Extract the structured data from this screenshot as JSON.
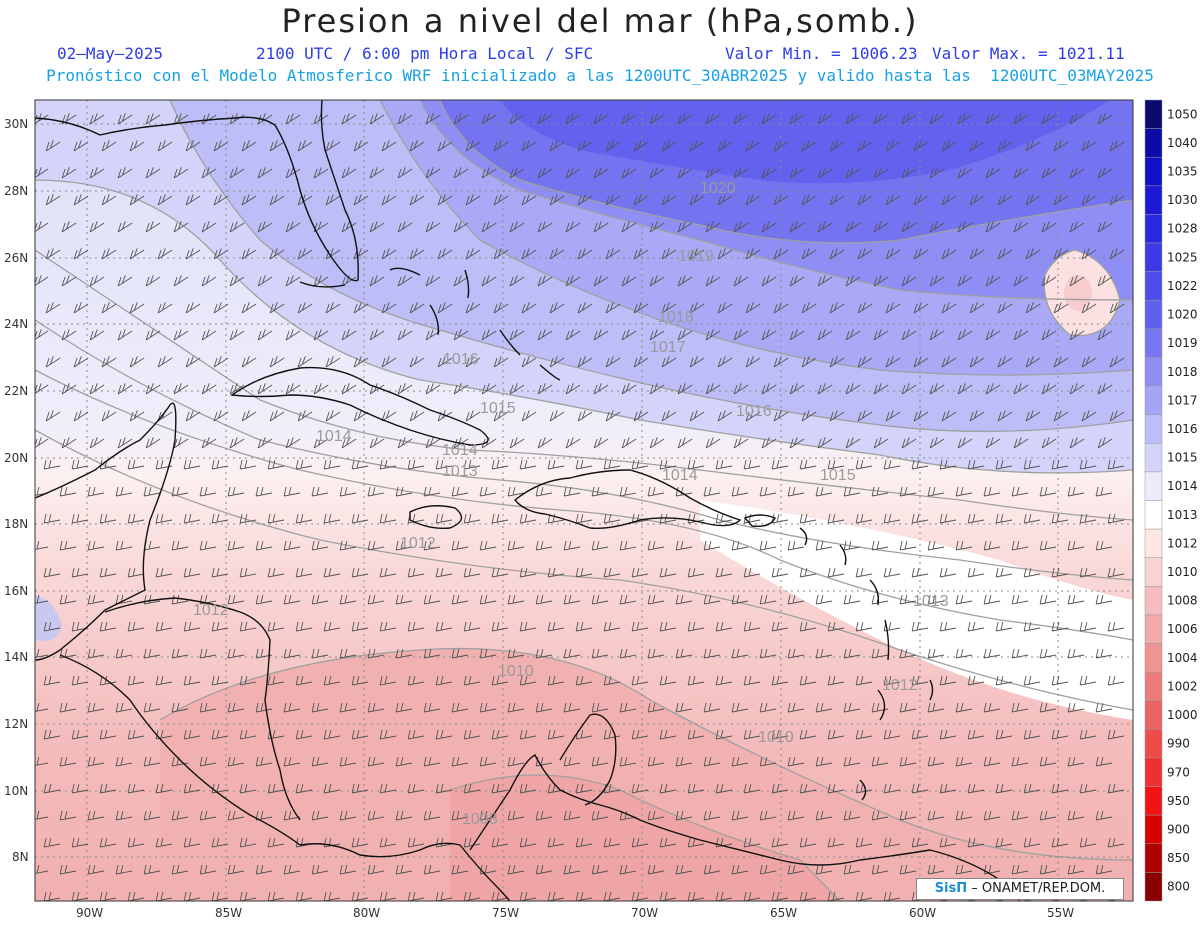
{
  "header": {
    "title": "Presion a nivel del mar (hPa,somb.)",
    "date": "02–May–2025",
    "time": "2100 UTC / 6:00 pm Hora Local / SFC",
    "valmin": "Valor Min. = 1006.23",
    "valmax": "Valor Max. = 1021.11",
    "forecast": "Pronóstico con el Modelo Atmosferico WRF inicializado a las 1200UTC_30ABR2025 y valido hasta las  1200UTC_03MAY2025"
  },
  "axes": {
    "lon_labels": [
      "90W",
      "85W",
      "80W",
      "75W",
      "70W",
      "65W",
      "60W",
      "55W"
    ],
    "lat_labels": [
      "30N",
      "28N",
      "26N",
      "24N",
      "22N",
      "20N",
      "18N",
      "16N",
      "14N",
      "12N",
      "10N",
      "8N"
    ],
    "grid": true
  },
  "colorbar": {
    "levels": [
      "1050",
      "1040",
      "1035",
      "1030",
      "1028",
      "1025",
      "1022",
      "1020",
      "1019",
      "1018",
      "1017",
      "1016",
      "1015",
      "1014",
      "1013",
      "1012",
      "1010",
      "1008",
      "1006",
      "1004",
      "1002",
      "1000",
      "990",
      "970",
      "950",
      "900",
      "850",
      "800"
    ],
    "colors": [
      "#0a0a6e",
      "#0b0ba8",
      "#1010c8",
      "#1a1ad6",
      "#2828e0",
      "#3a3ae6",
      "#4c4cea",
      "#6060ef",
      "#7777f2",
      "#8e8ef4",
      "#a5a5f6",
      "#bdbdf8",
      "#d4d4fa",
      "#ebebfc",
      "#ffffff",
      "#fde6e6",
      "#f9d2d2",
      "#f5bdbd",
      "#f2a9a9",
      "#ef9393",
      "#ec7c7c",
      "#e96464",
      "#ee4b4b",
      "#f03030",
      "#f01414",
      "#d80000",
      "#b00000",
      "#880000"
    ]
  },
  "contour_labels": [
    {
      "text": "1020"
    },
    {
      "text": "1019"
    },
    {
      "text": "1018"
    },
    {
      "text": "1017"
    },
    {
      "text": "1016"
    },
    {
      "text": "1015"
    },
    {
      "text": "1016"
    },
    {
      "text": "1014"
    },
    {
      "text": "1014"
    },
    {
      "text": "1013"
    },
    {
      "text": "1014"
    },
    {
      "text": "1015"
    },
    {
      "text": "1012"
    },
    {
      "text": "1012"
    },
    {
      "text": "1013"
    },
    {
      "text": "1010"
    },
    {
      "text": "1012"
    },
    {
      "text": "1010"
    },
    {
      "text": "1008"
    }
  ],
  "credit": {
    "logo": "SisΠ",
    "text": "– ONAMET/REP.DOM."
  }
}
